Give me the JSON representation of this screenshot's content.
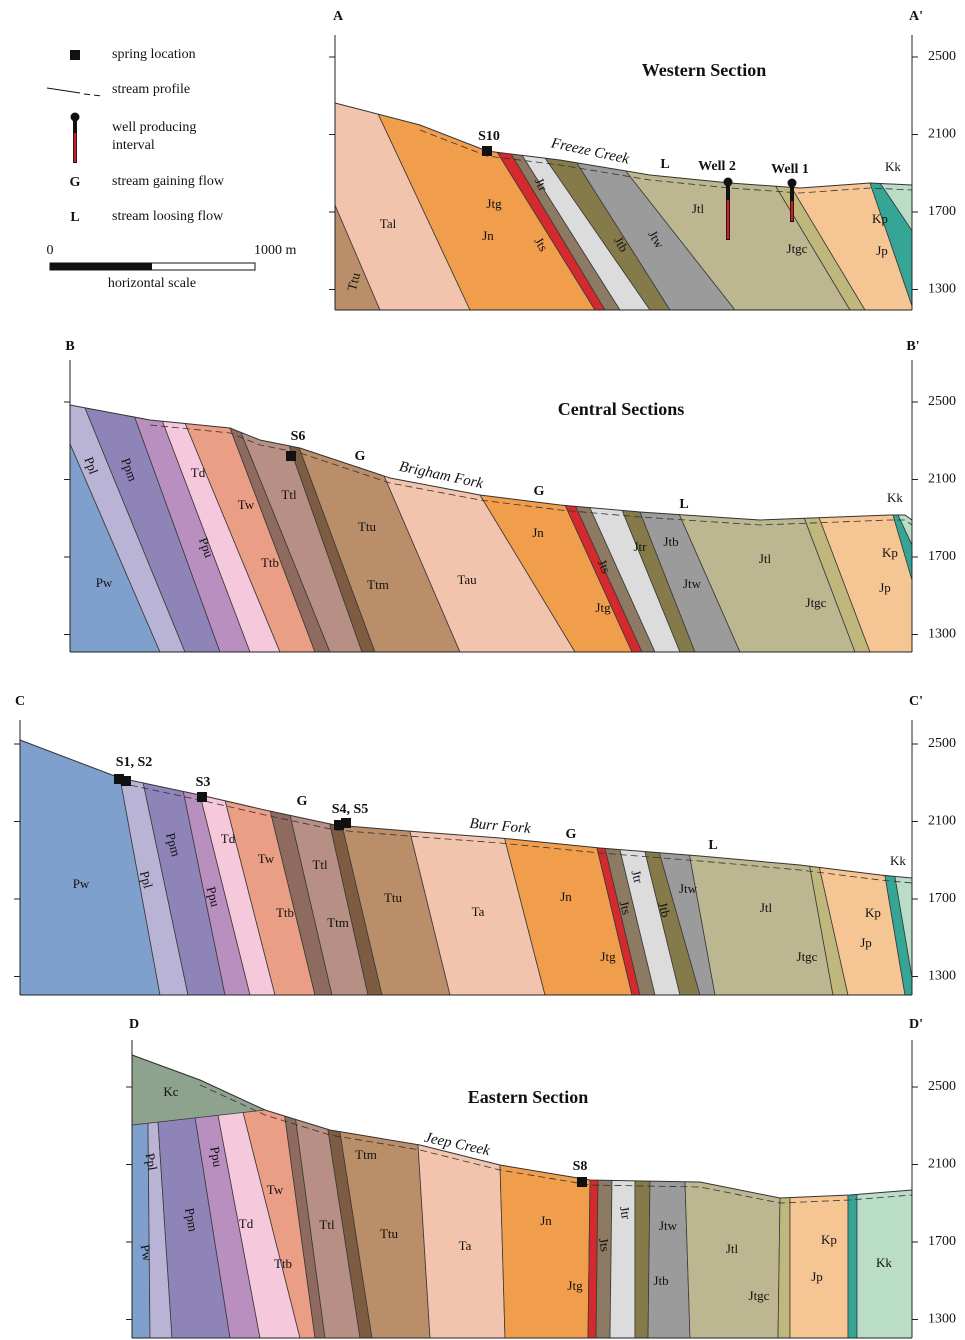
{
  "legend": {
    "spring": "spring location",
    "stream": "stream profile",
    "well": [
      "well producing",
      "interval"
    ],
    "gaining_symbol": "G",
    "gaining": "stream gaining flow",
    "losing_symbol": "L",
    "losing": "stream loosing flow",
    "scale": {
      "start": "0",
      "end": "1000 m",
      "caption": "horizontal scale"
    }
  },
  "sections": [
    {
      "start": "A",
      "end": "A'",
      "title": "Western Section",
      "stream": "Freeze Creek",
      "elevation_ticks": [
        2500,
        2100,
        1700,
        1300
      ],
      "units": [
        "Ttu",
        "Tal",
        "Jn",
        "Jtg",
        "Jts",
        "Jtr",
        "Jtb",
        "Jtw",
        "Jtl",
        "Jtgc",
        "Jp",
        "Kp",
        "Kk"
      ],
      "springs": [
        "S10"
      ],
      "flow_markers": [
        "L"
      ],
      "wells": [
        "Well 2",
        "Well 1"
      ]
    },
    {
      "start": "B",
      "end": "B'",
      "title": "Central Sections",
      "stream": "Brigham Fork",
      "elevation_ticks": [
        2500,
        2100,
        1700,
        1300
      ],
      "units": [
        "Ppl",
        "Ppm",
        "Td",
        "Ppu",
        "Tw",
        "Ttl",
        "Ttb",
        "Ttu",
        "Ttm",
        "Tau",
        "Pw",
        "Jn",
        "Jts",
        "Jtg",
        "Jtr",
        "Jtb",
        "Jtw",
        "Jtl",
        "Jtgc",
        "Jp",
        "Kp",
        "Kk"
      ],
      "springs": [
        "S6"
      ],
      "flow_markers": [
        "G",
        "G",
        "L"
      ]
    },
    {
      "start": "C",
      "end": "C'",
      "stream": "Burr Fork",
      "elevation_ticks": [
        2500,
        2100,
        1700,
        1300
      ],
      "units": [
        "Pw",
        "Ppl",
        "Ppm",
        "Td",
        "Ppu",
        "Tw",
        "Ttl",
        "Ttb",
        "Ttu",
        "Ttm",
        "Ta",
        "Jn",
        "Jtr",
        "Jts",
        "Jtb",
        "Jtg",
        "Jtw",
        "Jtl",
        "Jtgc",
        "Jp",
        "Kp",
        "Kk"
      ],
      "springs": [
        "S1, S2",
        "S3",
        "S4, S5"
      ],
      "flow_markers": [
        "G",
        "G",
        "L"
      ]
    },
    {
      "start": "D",
      "end": "D'",
      "title": "Eastern Section",
      "stream": "Jeep Creek",
      "elevation_ticks": [
        2500,
        2100,
        1700,
        1300
      ],
      "units": [
        "Kc",
        "Ppl",
        "Pw",
        "Ppm",
        "Ppu",
        "Td",
        "Tw",
        "Ttl",
        "Ttb",
        "Ttm",
        "Ttu",
        "Ta",
        "Jn",
        "Jts",
        "Jtr",
        "Jtg",
        "Jtw",
        "Jtb",
        "Jtl",
        "Jtgc",
        "Jp",
        "Kp",
        "Kk"
      ],
      "springs": [
        "S8"
      ]
    }
  ]
}
